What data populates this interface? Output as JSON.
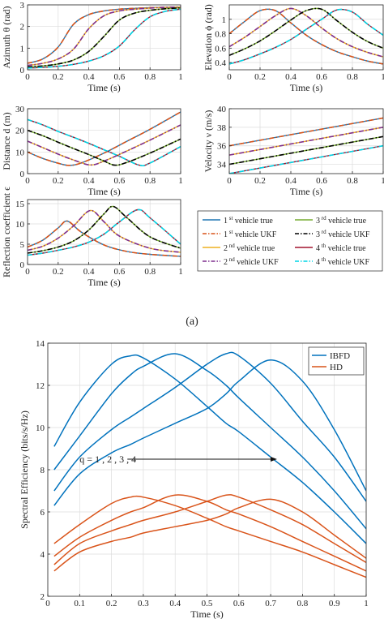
{
  "caption_a": "(a)",
  "colors": {
    "v1_true": "#1f77b4",
    "v1_ukf": "#d95319",
    "v2_true": "#edb120",
    "v2_ukf": "#7e2f8e",
    "v3_true": "#77ac30",
    "v3_ukf": "#000000",
    "v4_true": "#a2142f",
    "v4_ukf": "#00d6e6",
    "ibfd": "#0072bd",
    "hd": "#d95319"
  },
  "legend_a": [
    {
      "key": "v1_true",
      "sup": "st",
      "prefix": "1",
      "text": "vehicle true",
      "dash": "solid"
    },
    {
      "key": "v3_true",
      "sup": "rd",
      "prefix": "3",
      "text": "vehicle true",
      "dash": "solid"
    },
    {
      "key": "v1_ukf",
      "sup": "st",
      "prefix": "1",
      "text": "vehicle UKF",
      "dash": "dashdot"
    },
    {
      "key": "v3_ukf",
      "sup": "rd",
      "prefix": "3",
      "text": "vehicle UKF",
      "dash": "dashdot"
    },
    {
      "key": "v2_true",
      "sup": "nd",
      "prefix": "2",
      "text": "vehicle true",
      "dash": "solid"
    },
    {
      "key": "v4_true",
      "sup": "th",
      "prefix": "4",
      "text": "vehicle true",
      "dash": "solid"
    },
    {
      "key": "v2_ukf",
      "sup": "nd",
      "prefix": "2",
      "text": "vehicle UKF",
      "dash": "dashdot"
    },
    {
      "key": "v4_ukf",
      "sup": "th",
      "prefix": "4",
      "text": "vehicle UKF",
      "dash": "dashdot"
    }
  ],
  "chart_data": [
    {
      "type": "line",
      "id": "azimuth",
      "xlabel": "Time (s)",
      "ylabel": "Azimuth θ (rad)",
      "xlim": [
        0,
        1
      ],
      "ylim": [
        0,
        3
      ],
      "xticks": [
        0,
        0.2,
        0.4,
        0.6,
        0.8,
        1
      ],
      "yticks": [
        0,
        1,
        2,
        3
      ],
      "xtick_labels": [
        "0",
        "0.2",
        "0.4",
        "0.6",
        "0.8",
        "1"
      ],
      "ytick_labels": [
        "0",
        "1",
        "2",
        "3"
      ],
      "x": [
        0,
        0.1,
        0.2,
        0.3,
        0.4,
        0.5,
        0.6,
        0.7,
        0.8,
        0.9,
        1.0
      ],
      "series": [
        {
          "vehicle": 1,
          "values": [
            0.3,
            0.5,
            1.05,
            2.1,
            2.55,
            2.72,
            2.8,
            2.84,
            2.87,
            2.89,
            2.9
          ]
        },
        {
          "vehicle": 2,
          "values": [
            0.2,
            0.3,
            0.5,
            0.95,
            1.9,
            2.5,
            2.72,
            2.8,
            2.85,
            2.88,
            2.9
          ]
        },
        {
          "vehicle": 3,
          "values": [
            0.13,
            0.18,
            0.27,
            0.45,
            0.85,
            1.55,
            2.3,
            2.62,
            2.75,
            2.82,
            2.86
          ]
        },
        {
          "vehicle": 4,
          "values": [
            0.08,
            0.11,
            0.16,
            0.25,
            0.4,
            0.65,
            1.1,
            1.85,
            2.45,
            2.7,
            2.8
          ]
        }
      ]
    },
    {
      "type": "line",
      "id": "elevation",
      "xlabel": "Time (s)",
      "ylabel": "Elevation ϕ (rad)",
      "xlim": [
        0,
        1
      ],
      "ylim": [
        0.3,
        1.2
      ],
      "xticks": [
        0,
        0.2,
        0.4,
        0.6,
        0.8,
        1
      ],
      "yticks": [
        0.4,
        0.6,
        0.8,
        1
      ],
      "xtick_labels": [
        "0",
        "0.2",
        "0.4",
        "0.6",
        "0.8",
        "1"
      ],
      "ytick_labels": [
        "0.4",
        "0.6",
        "0.8",
        "1"
      ],
      "x": [
        0,
        0.1,
        0.2,
        0.3,
        0.4,
        0.5,
        0.6,
        0.7,
        0.8,
        0.9,
        1.0
      ],
      "series": [
        {
          "vehicle": 1,
          "values": [
            0.8,
            0.97,
            1.12,
            1.12,
            0.95,
            0.78,
            0.65,
            0.55,
            0.48,
            0.42,
            0.38
          ]
        },
        {
          "vehicle": 2,
          "values": [
            0.62,
            0.75,
            0.9,
            1.05,
            1.15,
            1.05,
            0.88,
            0.73,
            0.62,
            0.54,
            0.48
          ]
        },
        {
          "vehicle": 3,
          "values": [
            0.5,
            0.59,
            0.7,
            0.84,
            0.99,
            1.12,
            1.14,
            0.98,
            0.82,
            0.69,
            0.6
          ]
        },
        {
          "vehicle": 4,
          "values": [
            0.38,
            0.44,
            0.52,
            0.61,
            0.72,
            0.86,
            1.0,
            1.13,
            1.1,
            0.93,
            0.78
          ]
        }
      ]
    },
    {
      "type": "line",
      "id": "distance",
      "xlabel": "Time (s)",
      "ylabel": "Distance d (m)",
      "xlim": [
        0,
        1
      ],
      "ylim": [
        0,
        30
      ],
      "xticks": [
        0,
        0.2,
        0.4,
        0.6,
        0.8,
        1
      ],
      "yticks": [
        0,
        10,
        20,
        30
      ],
      "xtick_labels": [
        "0",
        "0.2",
        "0.4",
        "0.6",
        "0.8",
        "1"
      ],
      "ytick_labels": [
        "0",
        "10",
        "20",
        "30"
      ],
      "series": [
        {
          "vehicle": 1,
          "x": [
            0,
            0.1,
            0.2,
            0.27,
            0.35,
            0.5,
            0.65,
            0.8,
            1.0
          ],
          "values": [
            10.0,
            7.0,
            4.8,
            3.8,
            4.9,
            9.5,
            15.0,
            20.5,
            28.5
          ]
        },
        {
          "vehicle": 2,
          "x": [
            0,
            0.1,
            0.2,
            0.3,
            0.41,
            0.5,
            0.65,
            0.8,
            1.0
          ],
          "values": [
            15.0,
            12.0,
            9.0,
            6.3,
            4.0,
            5.8,
            10.5,
            15.5,
            22.5
          ]
        },
        {
          "vehicle": 3,
          "x": [
            0,
            0.1,
            0.2,
            0.3,
            0.4,
            0.5,
            0.57,
            0.65,
            0.8,
            1.0
          ],
          "values": [
            20.0,
            17.5,
            14.5,
            11.6,
            8.8,
            5.8,
            3.9,
            5.2,
            9.5,
            16.0
          ]
        },
        {
          "vehicle": 4,
          "x": [
            0,
            0.1,
            0.2,
            0.3,
            0.4,
            0.5,
            0.6,
            0.73,
            0.8,
            1.0
          ],
          "values": [
            25.0,
            22.5,
            19.5,
            16.8,
            14.0,
            11.0,
            8.0,
            3.9,
            4.9,
            12.5
          ]
        }
      ]
    },
    {
      "type": "line",
      "id": "velocity",
      "xlabel": "Time (s)",
      "ylabel": "Velocity ν (m/s)",
      "xlim": [
        0,
        1
      ],
      "ylim": [
        33,
        40
      ],
      "xticks": [
        0,
        0.2,
        0.4,
        0.6,
        0.8,
        1
      ],
      "yticks": [
        34,
        36,
        38,
        40
      ],
      "xtick_labels": [
        "0",
        "0.2",
        "0.4",
        "0.6",
        "0.8",
        "1"
      ],
      "ytick_labels": [
        "34",
        "36",
        "38",
        "40"
      ],
      "x": [
        0,
        1
      ],
      "series": [
        {
          "vehicle": 1,
          "values": [
            36.0,
            39.0
          ]
        },
        {
          "vehicle": 2,
          "values": [
            35.0,
            38.0
          ]
        },
        {
          "vehicle": 3,
          "values": [
            34.0,
            37.0
          ]
        },
        {
          "vehicle": 4,
          "values": [
            33.0,
            36.0
          ]
        }
      ]
    },
    {
      "type": "line",
      "id": "reflection",
      "xlabel": "Time (s)",
      "ylabel": "Reflection coefficient ϵ",
      "xlim": [
        0,
        1
      ],
      "ylim": [
        0,
        16
      ],
      "xticks": [
        0,
        0.2,
        0.4,
        0.6,
        0.8,
        1
      ],
      "yticks": [
        0,
        5,
        10,
        15
      ],
      "xtick_labels": [
        "0",
        "0.2",
        "0.4",
        "0.6",
        "0.8",
        "1"
      ],
      "ytick_labels": [
        "0",
        "5",
        "10",
        "15"
      ],
      "series": [
        {
          "vehicle": 1,
          "x": [
            0,
            0.1,
            0.2,
            0.26,
            0.35,
            0.5,
            0.65,
            0.8,
            1.0
          ],
          "values": [
            4.3,
            6.0,
            9.0,
            10.7,
            8.0,
            4.8,
            3.2,
            2.5,
            2.0
          ]
        },
        {
          "vehicle": 2,
          "x": [
            0,
            0.1,
            0.2,
            0.3,
            0.41,
            0.5,
            0.6,
            0.8,
            1.0
          ],
          "values": [
            3.5,
            4.5,
            6.5,
            9.5,
            13.3,
            10.5,
            7.0,
            4.0,
            3.0
          ]
        },
        {
          "vehicle": 3,
          "x": [
            0,
            0.1,
            0.2,
            0.3,
            0.4,
            0.5,
            0.56,
            0.65,
            0.8,
            1.0
          ],
          "values": [
            2.8,
            3.4,
            4.3,
            5.8,
            8.5,
            12.5,
            14.3,
            11.5,
            6.8,
            4.0
          ]
        },
        {
          "vehicle": 4,
          "x": [
            0,
            0.1,
            0.2,
            0.3,
            0.4,
            0.5,
            0.6,
            0.72,
            0.8,
            1.0
          ],
          "values": [
            2.3,
            2.8,
            3.5,
            4.3,
            5.5,
            7.5,
            10.5,
            13.5,
            11.5,
            5.0
          ]
        }
      ]
    },
    {
      "type": "line",
      "id": "spectral",
      "xlabel": "Time (s)",
      "ylabel": "Spectral Efficiency (bits/s/Hz)",
      "xlim": [
        0,
        1
      ],
      "ylim": [
        2,
        14
      ],
      "xticks": [
        0,
        0.1,
        0.2,
        0.3,
        0.4,
        0.5,
        0.6,
        0.7,
        0.8,
        0.9,
        1
      ],
      "yticks": [
        2,
        4,
        6,
        8,
        10,
        12,
        14
      ],
      "xtick_labels": [
        "0",
        "0.1",
        "0.2",
        "0.3",
        "0.4",
        "0.5",
        "0.6",
        "0.7",
        "0.8",
        "0.9",
        "1"
      ],
      "ytick_labels": [
        "2",
        "4",
        "6",
        "8",
        "10",
        "12",
        "14"
      ],
      "legend": [
        "IBFD",
        "HD"
      ],
      "annotation": "q = 1 , 2 , 3 , 4",
      "annotation_arrow": {
        "x_from": 0.25,
        "x_to": 0.72,
        "y": 8.5
      },
      "x": [
        0.02,
        0.1,
        0.2,
        0.26,
        0.3,
        0.4,
        0.5,
        0.56,
        0.6,
        0.7,
        0.8,
        0.9,
        1.0
      ],
      "series": [
        {
          "name": "IBFD",
          "q": 1,
          "values": [
            9.1,
            11.2,
            13.0,
            13.4,
            13.3,
            12.3,
            11.0,
            10.2,
            9.8,
            8.6,
            7.4,
            6.0,
            4.5
          ]
        },
        {
          "name": "IBFD",
          "q": 2,
          "values": [
            8.0,
            9.6,
            11.6,
            12.5,
            12.9,
            13.5,
            12.7,
            12.0,
            11.4,
            10.0,
            8.6,
            7.0,
            5.2
          ]
        },
        {
          "name": "IBFD",
          "q": 3,
          "values": [
            7.0,
            8.6,
            9.9,
            10.5,
            10.9,
            11.9,
            13.0,
            13.5,
            13.4,
            12.1,
            10.3,
            8.6,
            6.5
          ]
        },
        {
          "name": "IBFD",
          "q": 4,
          "values": [
            6.3,
            7.8,
            8.8,
            9.2,
            9.5,
            10.2,
            10.9,
            11.6,
            12.2,
            13.2,
            12.2,
            9.9,
            7.0
          ]
        },
        {
          "name": "HD",
          "q": 1,
          "values": [
            4.5,
            5.4,
            6.4,
            6.7,
            6.7,
            6.3,
            5.7,
            5.3,
            5.1,
            4.6,
            4.1,
            3.5,
            2.9
          ]
        },
        {
          "name": "HD",
          "q": 2,
          "values": [
            3.9,
            4.8,
            5.6,
            6.0,
            6.2,
            6.8,
            6.5,
            6.1,
            5.9,
            5.3,
            4.6,
            3.9,
            3.2
          ]
        },
        {
          "name": "HD",
          "q": 3,
          "values": [
            3.5,
            4.5,
            5.1,
            5.4,
            5.6,
            6.0,
            6.5,
            6.8,
            6.7,
            6.1,
            5.4,
            4.5,
            3.6
          ]
        },
        {
          "name": "HD",
          "q": 4,
          "values": [
            3.2,
            4.1,
            4.6,
            4.8,
            5.0,
            5.3,
            5.6,
            5.9,
            6.2,
            6.6,
            6.0,
            4.9,
            3.8
          ]
        }
      ]
    }
  ]
}
